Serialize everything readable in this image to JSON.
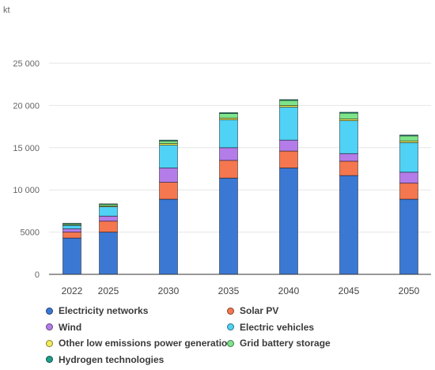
{
  "chart_data": {
    "type": "bar",
    "stacked": true,
    "unit_label": "kt",
    "categories": [
      "2022",
      "2025",
      "2030",
      "2035",
      "2040",
      "2045",
      "2050"
    ],
    "y_ticks": [
      "0",
      "5000",
      "10 000",
      "15 000",
      "20 000",
      "25 000"
    ],
    "ylim": [
      0,
      25000
    ],
    "grid": true,
    "legend_placement": "bottom",
    "series": [
      {
        "name": "Electricity networks",
        "color": "#3b78d4",
        "values": [
          4300,
          5000,
          8900,
          11400,
          12600,
          11700,
          8900
        ]
      },
      {
        "name": "Solar PV",
        "color": "#f4774f",
        "values": [
          700,
          1300,
          2000,
          2100,
          2000,
          1700,
          1900
        ]
      },
      {
        "name": "Wind",
        "color": "#b47ce8",
        "values": [
          400,
          600,
          1700,
          1500,
          1300,
          900,
          1300
        ]
      },
      {
        "name": "Electric vehicles",
        "color": "#4fd2f5",
        "values": [
          400,
          1100,
          2700,
          3300,
          3900,
          3900,
          3500
        ]
      },
      {
        "name": "Other low emissions power generation",
        "color": "#f2ec5a",
        "values": [
          50,
          100,
          200,
          200,
          200,
          200,
          200
        ]
      },
      {
        "name": "Grid battery storage",
        "color": "#7de38a",
        "values": [
          150,
          200,
          300,
          550,
          600,
          700,
          600
        ]
      },
      {
        "name": "Hydrogen technologies",
        "color": "#1f9e8c",
        "values": [
          50,
          50,
          100,
          100,
          100,
          100,
          100
        ]
      }
    ]
  }
}
